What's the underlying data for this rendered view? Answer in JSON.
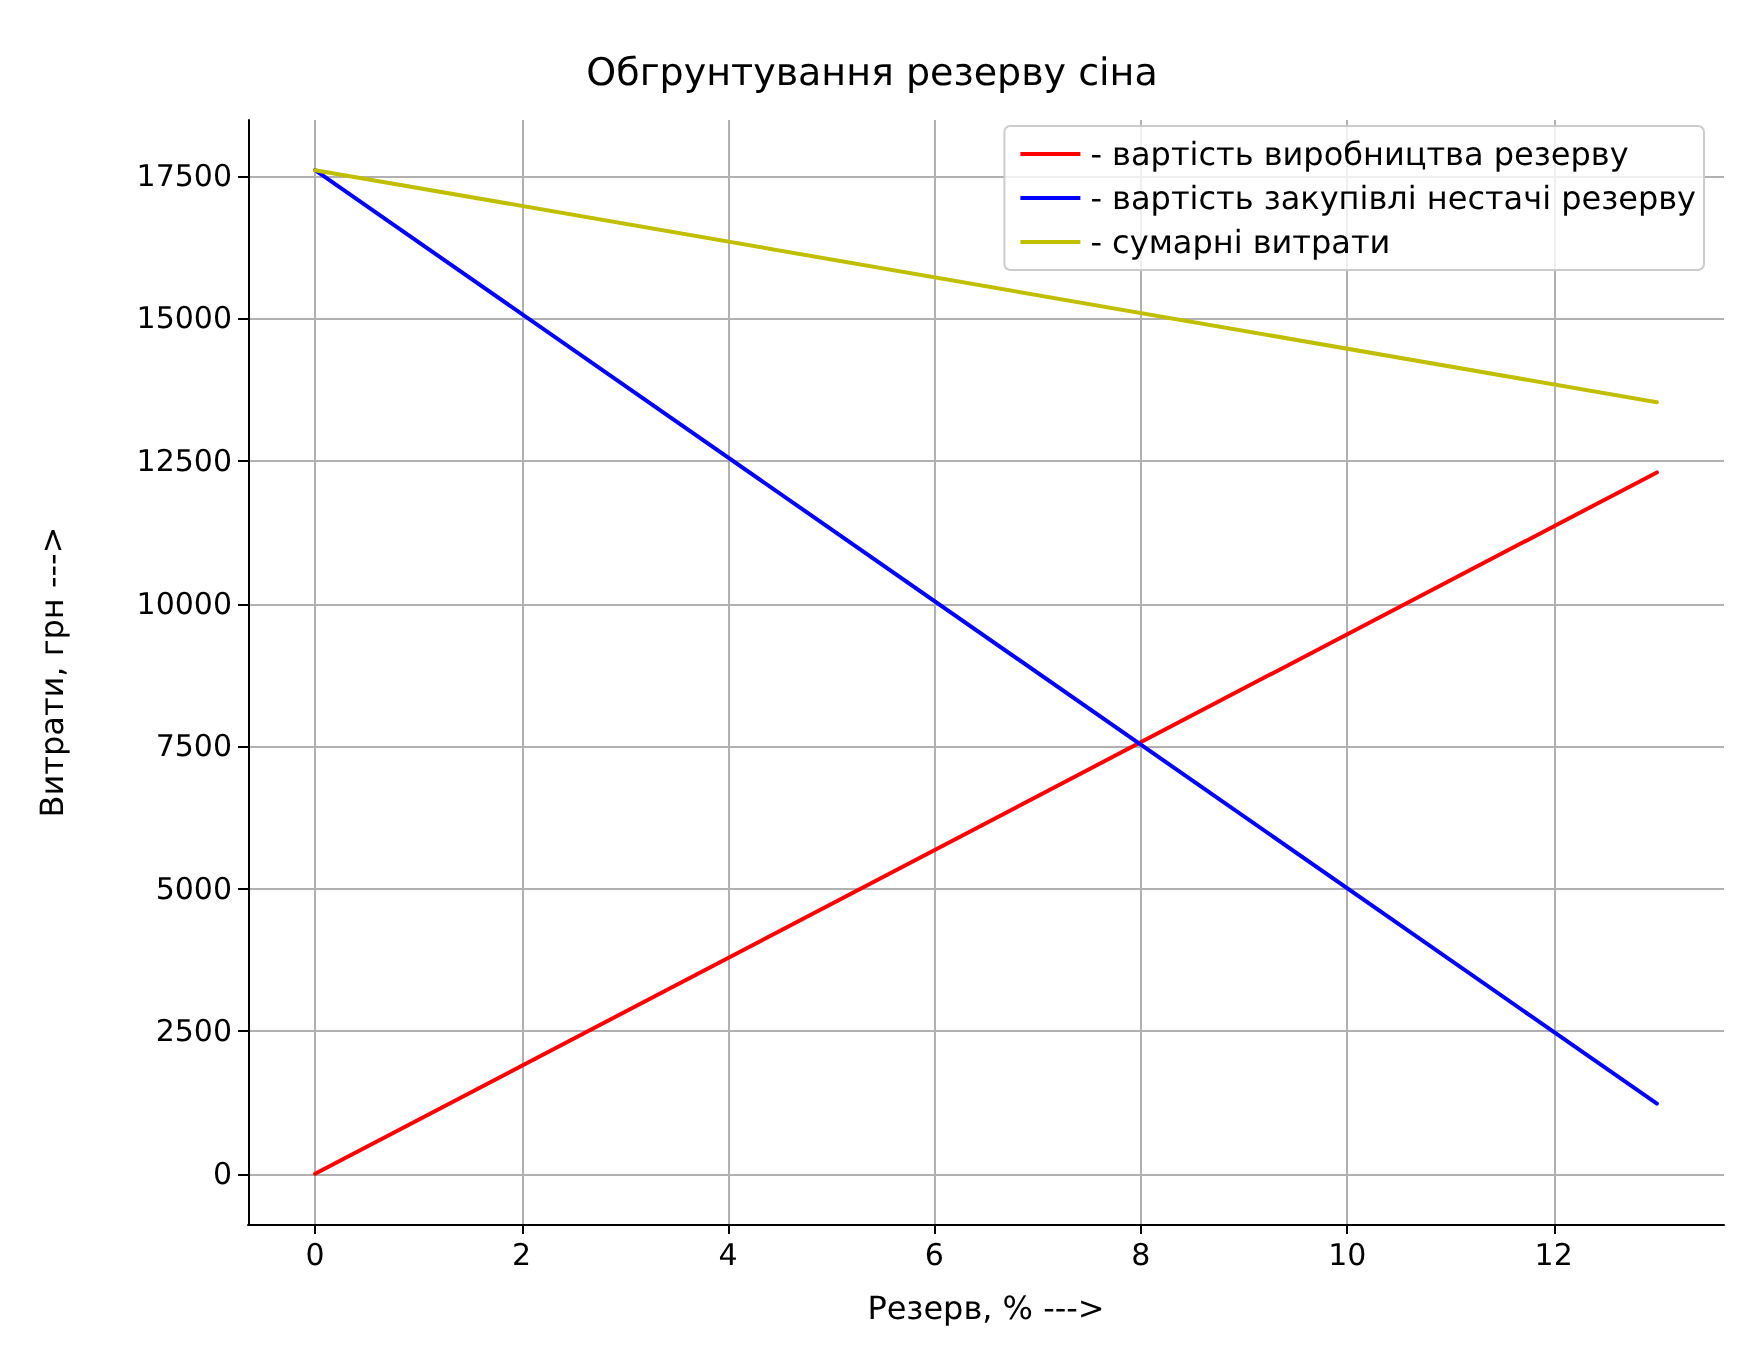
{
  "chart_data": {
    "type": "line",
    "title": "Обгрунтування резерву сіна",
    "xlabel": "Резерв, % --->",
    "ylabel": "Витрати, грн --->",
    "x": [
      0,
      13
    ],
    "series": [
      {
        "name": "- вартість виробництва резерву",
        "color": "#ff0000",
        "values": [
          0,
          12300
        ]
      },
      {
        "name": "- вартість закупівлі нестачі резерву",
        "color": "#0000ff",
        "values": [
          17600,
          1230
        ]
      },
      {
        "name": "- сумарні витрати",
        "color": "#bfbf00",
        "values": [
          17600,
          13530
        ]
      }
    ],
    "xlim": [
      -0.65,
      13.65
    ],
    "xticks": [
      0,
      2,
      4,
      6,
      8,
      10,
      12
    ],
    "ylim": [
      -880,
      18480
    ],
    "yticks": [
      0,
      2500,
      5000,
      7500,
      10000,
      12500,
      15000,
      17500
    ],
    "grid": true,
    "legend": "top right",
    "marker": "none",
    "line_style": "solid"
  }
}
